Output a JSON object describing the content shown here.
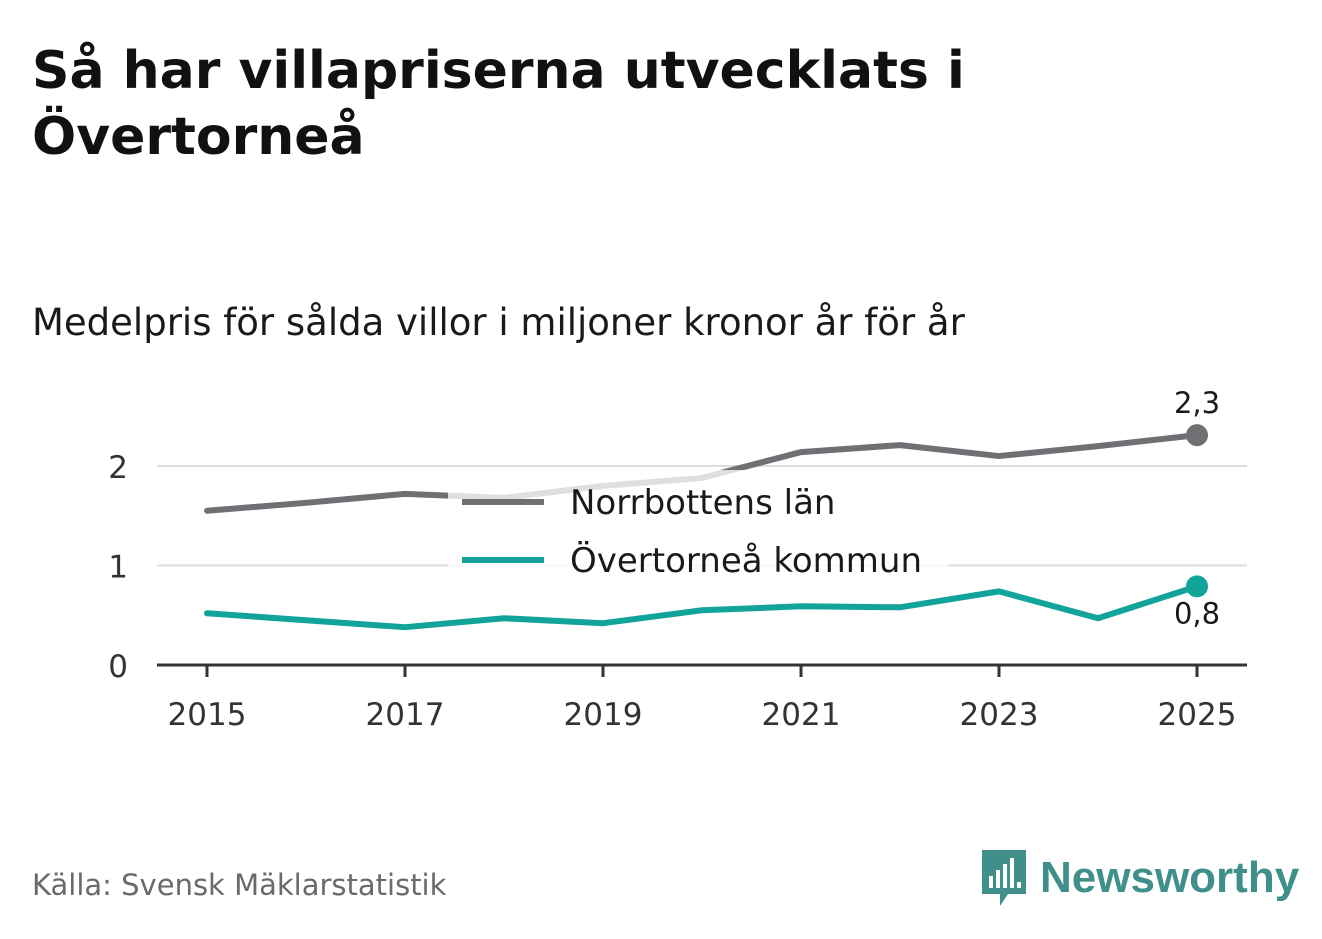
{
  "header": {
    "title": "Så har villapriserna utvecklats i Övertorneå",
    "subtitle": "Medelpris för sålda villor i miljoner kronor år för år"
  },
  "footer": {
    "source": "Källa: Svensk Mäklarstatistik",
    "brand": "Newsworthy"
  },
  "colors": {
    "norrbotten": "#6f6f74",
    "overtornea": "#12a39a",
    "grid": "#dddddd",
    "axis": "#333333",
    "brand": "#3f8f8a"
  },
  "chart_data": {
    "type": "line",
    "title": "Medelpris för sålda villor i miljoner kronor år för år",
    "xlabel": "",
    "ylabel": "",
    "x": [
      2015,
      2016,
      2017,
      2018,
      2019,
      2020,
      2021,
      2022,
      2023,
      2024,
      2025
    ],
    "xticks": [
      "2015",
      "2017",
      "2019",
      "2021",
      "2023",
      "2025"
    ],
    "yticks": [
      "0",
      "1",
      "2"
    ],
    "ylim": [
      0,
      2.5
    ],
    "grid": true,
    "legend": "inside-center",
    "series": [
      {
        "name": "Norrbottens län",
        "values": [
          1.55,
          1.63,
          1.72,
          1.68,
          1.8,
          1.88,
          2.14,
          2.21,
          2.1,
          2.2,
          2.31
        ],
        "end_label": "2,3"
      },
      {
        "name": "Övertorneå kommun",
        "values": [
          0.52,
          0.45,
          0.38,
          0.47,
          0.42,
          0.55,
          0.59,
          0.58,
          0.74,
          0.47,
          0.79
        ],
        "end_label": "0,8"
      }
    ]
  }
}
